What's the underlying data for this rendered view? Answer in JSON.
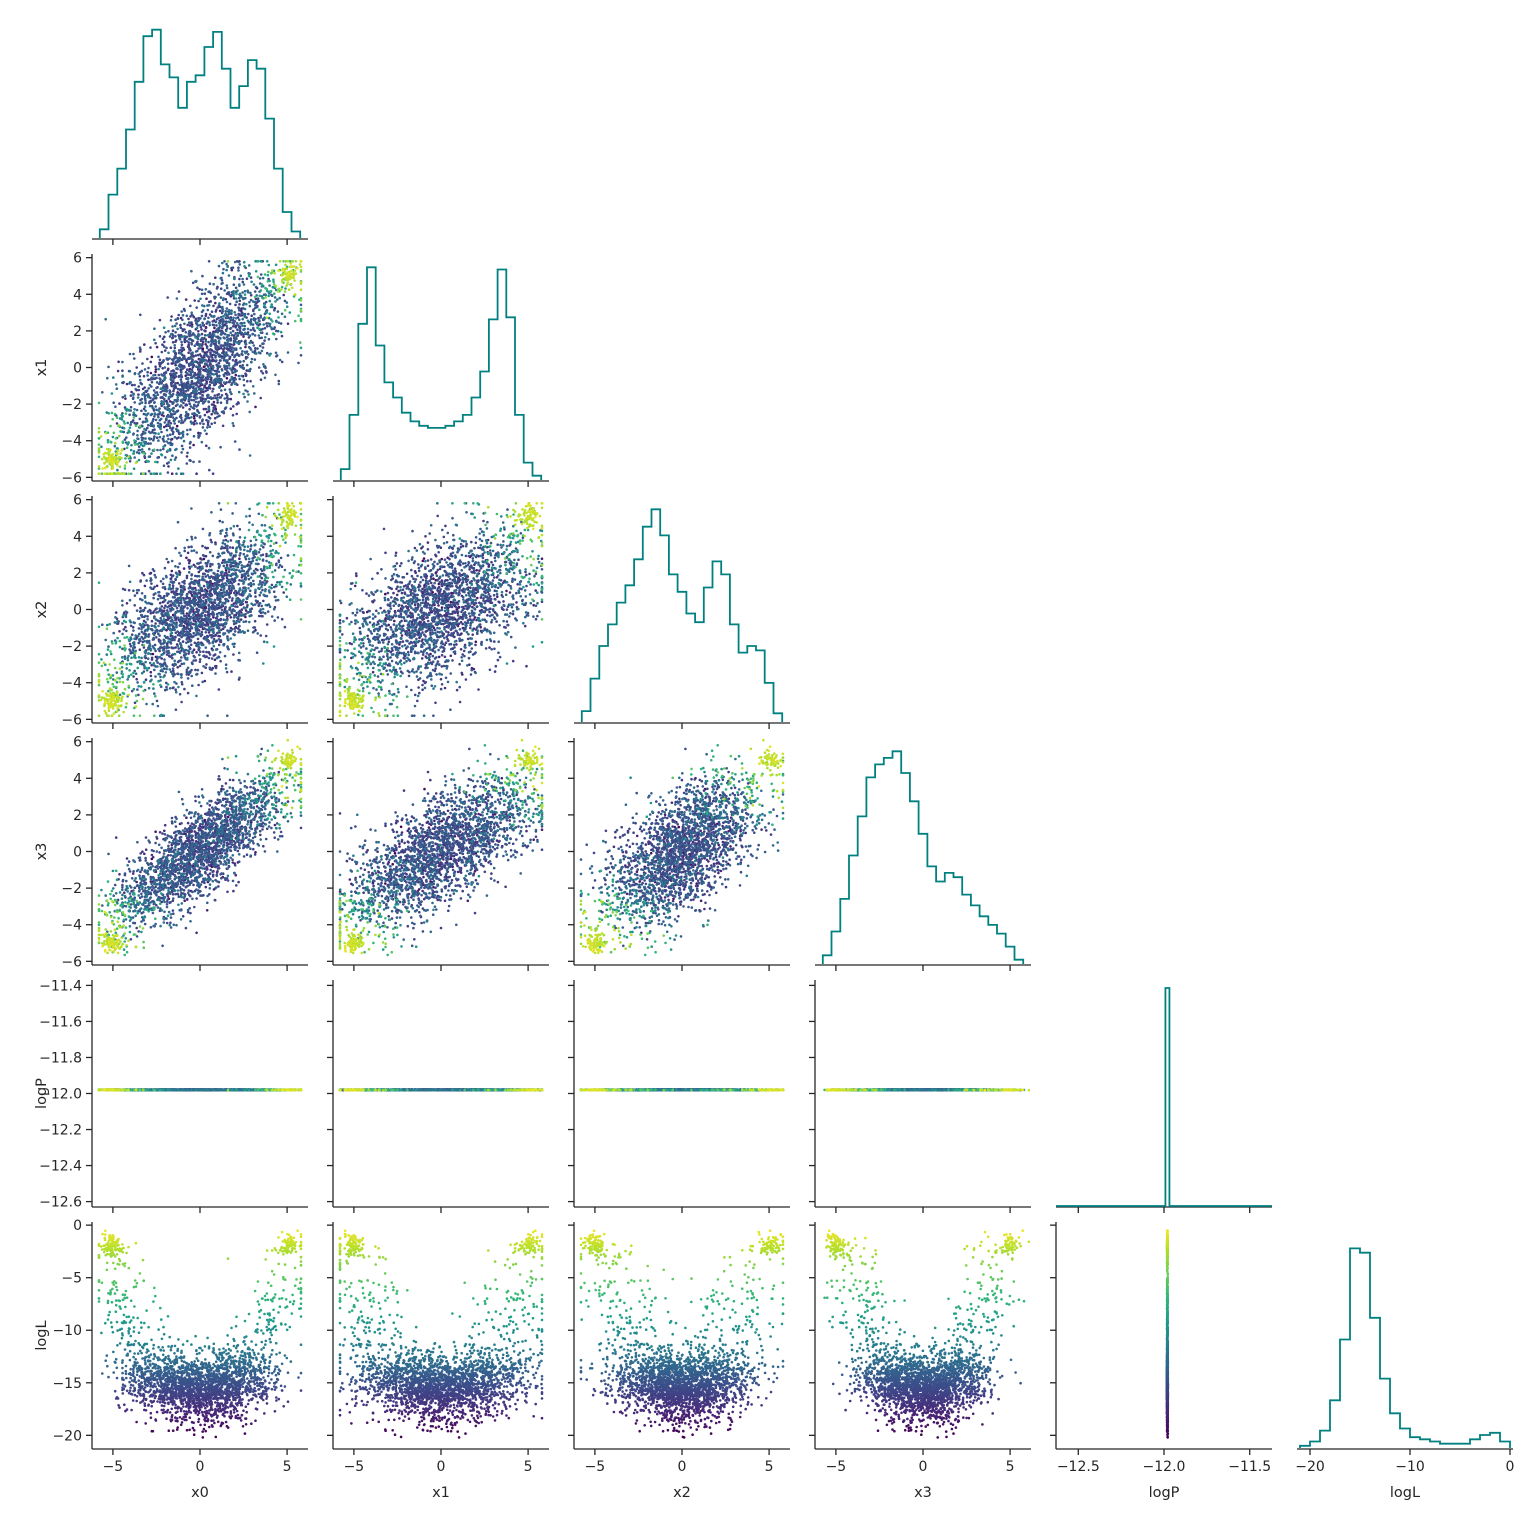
{
  "chart_data": {
    "type": "scatter",
    "layout": "corner-plot",
    "variables": [
      "x0",
      "x1",
      "x2",
      "x3",
      "logP",
      "logL"
    ],
    "axis_ranges": {
      "x0": [
        -6.2,
        6.2
      ],
      "x1": [
        -6.2,
        6.2
      ],
      "x2": [
        -6.2,
        6.2
      ],
      "x3": [
        -6.2,
        6.2
      ],
      "logP": [
        -12.63,
        -11.37
      ],
      "logL": [
        -21.3,
        0.3
      ]
    },
    "ticks": {
      "x0": {
        "bottom": [
          -5,
          0,
          5
        ]
      },
      "x1": {
        "bottom": [
          -5,
          0,
          5
        ],
        "left": [
          -6,
          -4,
          -2,
          0,
          2,
          4,
          6
        ]
      },
      "x2": {
        "bottom": [
          -5,
          0,
          5
        ],
        "left": [
          -6,
          -4,
          -2,
          0,
          2,
          4,
          6
        ]
      },
      "x3": {
        "bottom": [
          -5,
          0,
          5
        ],
        "left": [
          -6,
          -4,
          -2,
          0,
          2,
          4,
          6
        ]
      },
      "logP": {
        "bottom": [
          -12.5,
          -12.0,
          -11.5
        ],
        "left": [
          -12.6,
          -12.4,
          -12.2,
          -12.0,
          -11.8,
          -11.6,
          -11.4
        ]
      },
      "logL": {
        "bottom": [
          -20,
          -10,
          0
        ],
        "left": [
          -20,
          -15,
          -10,
          -5,
          0
        ]
      }
    },
    "tick_text": {
      "x0": [
        "−5",
        "0",
        "5"
      ],
      "x1": [
        "−5",
        "0",
        "5"
      ],
      "x2": [
        "−5",
        "0",
        "5"
      ],
      "x3": [
        "−5",
        "0",
        "5"
      ],
      "logP": [
        "−12.5",
        "−12.0",
        "−11.5"
      ],
      "logL": [
        "−20",
        "−10",
        "0"
      ],
      "left_x": [
        "−6",
        "−4",
        "−2",
        "0",
        "2",
        "4",
        "6"
      ],
      "left_logP": [
        "−12.6",
        "−12.4",
        "−12.2",
        "−12.0",
        "−11.8",
        "−11.6",
        "−11.4"
      ],
      "left_logL": [
        "−20",
        "−15",
        "−10",
        "−5",
        "0"
      ]
    },
    "marginals": {
      "type": "step-histogram",
      "color": "#008080",
      "x0": {
        "centers": [
          -5.5,
          -5.0,
          -4.5,
          -4.0,
          -3.5,
          -3.0,
          -2.5,
          -2.0,
          -1.5,
          -1.0,
          -0.5,
          0.0,
          0.5,
          1.0,
          1.5,
          2.0,
          2.5,
          3.0,
          3.5,
          4.0,
          4.5,
          5.0,
          5.5
        ],
        "heights": [
          0.04,
          0.2,
          0.32,
          0.5,
          0.72,
          0.93,
          0.96,
          0.8,
          0.74,
          0.6,
          0.72,
          0.75,
          0.88,
          0.95,
          0.78,
          0.6,
          0.7,
          0.82,
          0.78,
          0.55,
          0.32,
          0.12,
          0.03
        ]
      },
      "x1": {
        "centers": [
          -5.5,
          -5.0,
          -4.5,
          -4.0,
          -3.5,
          -3.0,
          -2.5,
          -2.0,
          -1.5,
          -1.0,
          -0.5,
          0.0,
          0.5,
          1.0,
          1.5,
          2.0,
          2.5,
          3.0,
          3.5,
          4.0,
          4.5,
          5.0,
          5.5
        ],
        "heights": [
          0.05,
          0.3,
          0.72,
          0.98,
          0.62,
          0.45,
          0.38,
          0.31,
          0.27,
          0.25,
          0.24,
          0.24,
          0.25,
          0.27,
          0.3,
          0.38,
          0.5,
          0.74,
          0.97,
          0.75,
          0.3,
          0.08,
          0.02
        ]
      },
      "x2": {
        "centers": [
          -5.5,
          -5.0,
          -4.5,
          -4.0,
          -3.5,
          -3.0,
          -2.5,
          -2.0,
          -1.5,
          -1.0,
          -0.5,
          0.0,
          0.5,
          1.0,
          1.5,
          2.0,
          2.5,
          3.0,
          3.5,
          4.0,
          4.5,
          5.0,
          5.5
        ],
        "heights": [
          0.05,
          0.2,
          0.35,
          0.45,
          0.55,
          0.63,
          0.75,
          0.9,
          0.98,
          0.86,
          0.68,
          0.6,
          0.5,
          0.46,
          0.62,
          0.74,
          0.68,
          0.45,
          0.32,
          0.35,
          0.33,
          0.18,
          0.04
        ]
      },
      "x3": {
        "centers": [
          -5.5,
          -5.0,
          -4.5,
          -4.0,
          -3.5,
          -3.0,
          -2.5,
          -2.0,
          -1.5,
          -1.0,
          -0.5,
          0.0,
          0.5,
          1.0,
          1.5,
          2.0,
          2.5,
          3.0,
          3.5,
          4.0,
          4.5,
          5.0,
          5.5
        ],
        "heights": [
          0.04,
          0.15,
          0.3,
          0.5,
          0.68,
          0.86,
          0.92,
          0.95,
          0.98,
          0.88,
          0.75,
          0.6,
          0.45,
          0.38,
          0.42,
          0.4,
          0.32,
          0.27,
          0.22,
          0.18,
          0.14,
          0.08,
          0.02
        ]
      },
      "logP": {
        "spike_at": -11.98,
        "height": 1.0
      },
      "logL": {
        "centers": [
          -20.5,
          -19.5,
          -18.5,
          -17.5,
          -16.5,
          -15.5,
          -14.5,
          -13.5,
          -12.5,
          -11.5,
          -10.5,
          -9.5,
          -8.5,
          -7.5,
          -6.5,
          -5.5,
          -4.5,
          -3.5,
          -2.5,
          -1.5,
          -0.5
        ],
        "heights": [
          0.01,
          0.03,
          0.08,
          0.22,
          0.5,
          0.92,
          0.9,
          0.6,
          0.32,
          0.16,
          0.09,
          0.05,
          0.04,
          0.03,
          0.02,
          0.02,
          0.02,
          0.04,
          0.06,
          0.07,
          0.03
        ]
      }
    },
    "scatter": {
      "colormap": "viridis",
      "color_by": "logL",
      "description_points": "thousands of posterior samples; bright yellow at mode corners (±5), dark purple in bulk",
      "modes": [
        [
          -5,
          -5,
          -5,
          -5
        ],
        [
          5,
          5,
          5,
          5
        ]
      ],
      "logP_value": -11.98,
      "logL_profile": {
        "bulk_level": -15,
        "bulk_spread": 2,
        "peak_level": -1.5
      }
    },
    "labels": {
      "bottom": [
        "x0",
        "x1",
        "x2",
        "x3",
        "logP",
        "logL"
      ],
      "left": [
        "x1",
        "x2",
        "x3",
        "logP",
        "logL"
      ]
    },
    "colors": {
      "hist": "#008080",
      "axis": "#262626",
      "viridis": [
        "#440154",
        "#482878",
        "#3e4989",
        "#31688e",
        "#26828e",
        "#1f9e89",
        "#35b779",
        "#6ece58",
        "#b5de2b",
        "#fde725"
      ]
    },
    "grid": false,
    "legend": "none"
  }
}
